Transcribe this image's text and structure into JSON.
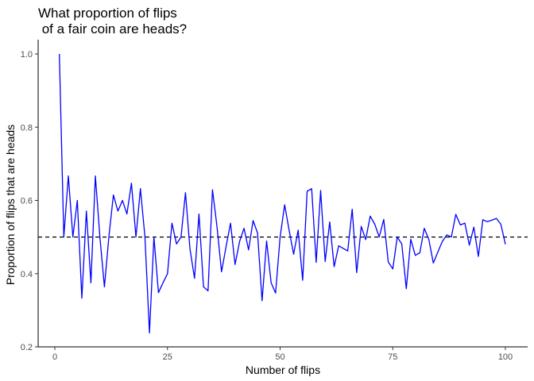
{
  "chart_data": {
    "type": "line",
    "title_lines": [
      "What proportion of flips",
      " of a fair coin are heads?"
    ],
    "xlabel": "Number of flips",
    "ylabel": "Proportion of flips that are heads",
    "xlim": [
      1,
      100
    ],
    "ylim": [
      0.2,
      1.0
    ],
    "x_ticks": [
      0,
      25,
      50,
      75,
      100
    ],
    "x_tick_labels": [
      "0",
      "25",
      "50",
      "75",
      "100"
    ],
    "y_ticks": [
      0.2,
      0.4,
      0.6,
      0.8,
      1.0
    ],
    "y_tick_labels": [
      "0.2",
      "0.4",
      "0.6",
      "0.8",
      "1.0"
    ],
    "grid": false,
    "reference_line": {
      "y": 0.5,
      "style": "dashed",
      "color": "#000000"
    },
    "series": [
      {
        "color": "#0000ff",
        "x": [
          1,
          2,
          3,
          4,
          5,
          6,
          7,
          8,
          9,
          10,
          11,
          12,
          13,
          14,
          15,
          16,
          17,
          18,
          19,
          20,
          21,
          22,
          23,
          24,
          25,
          26,
          27,
          28,
          29,
          30,
          31,
          32,
          33,
          34,
          35,
          36,
          37,
          38,
          39,
          40,
          41,
          42,
          43,
          44,
          45,
          46,
          47,
          48,
          49,
          50,
          51,
          52,
          53,
          54,
          55,
          56,
          57,
          58,
          59,
          60,
          61,
          62,
          63,
          64,
          65,
          66,
          67,
          68,
          69,
          70,
          71,
          72,
          73,
          74,
          75,
          76,
          77,
          78,
          79,
          80,
          81,
          82,
          83,
          84,
          85,
          86,
          87,
          88,
          89,
          90,
          91,
          92,
          93,
          94,
          95,
          96,
          97,
          98,
          99,
          100
        ],
        "values": [
          1.0,
          0.5,
          0.667,
          0.5,
          0.6,
          0.333,
          0.571,
          0.375,
          0.667,
          0.5,
          0.364,
          0.5,
          0.615,
          0.571,
          0.6,
          0.563,
          0.647,
          0.5,
          0.632,
          0.5,
          0.238,
          0.5,
          0.348,
          0.375,
          0.4,
          0.538,
          0.481,
          0.5,
          0.621,
          0.467,
          0.387,
          0.563,
          0.364,
          0.353,
          0.629,
          0.528,
          0.405,
          0.474,
          0.538,
          0.425,
          0.488,
          0.524,
          0.465,
          0.545,
          0.511,
          0.326,
          0.489,
          0.375,
          0.347,
          0.5,
          0.588,
          0.519,
          0.453,
          0.519,
          0.382,
          0.625,
          0.632,
          0.431,
          0.627,
          0.433,
          0.541,
          0.419,
          0.476,
          0.469,
          0.462,
          0.576,
          0.403,
          0.529,
          0.493,
          0.557,
          0.535,
          0.5,
          0.548,
          0.432,
          0.413,
          0.5,
          0.481,
          0.359,
          0.494,
          0.45,
          0.457,
          0.524,
          0.494,
          0.429,
          0.459,
          0.488,
          0.506,
          0.5,
          0.562,
          0.533,
          0.538,
          0.478,
          0.527,
          0.447,
          0.547,
          0.542,
          0.546,
          0.551,
          0.535,
          0.48
        ]
      }
    ]
  }
}
